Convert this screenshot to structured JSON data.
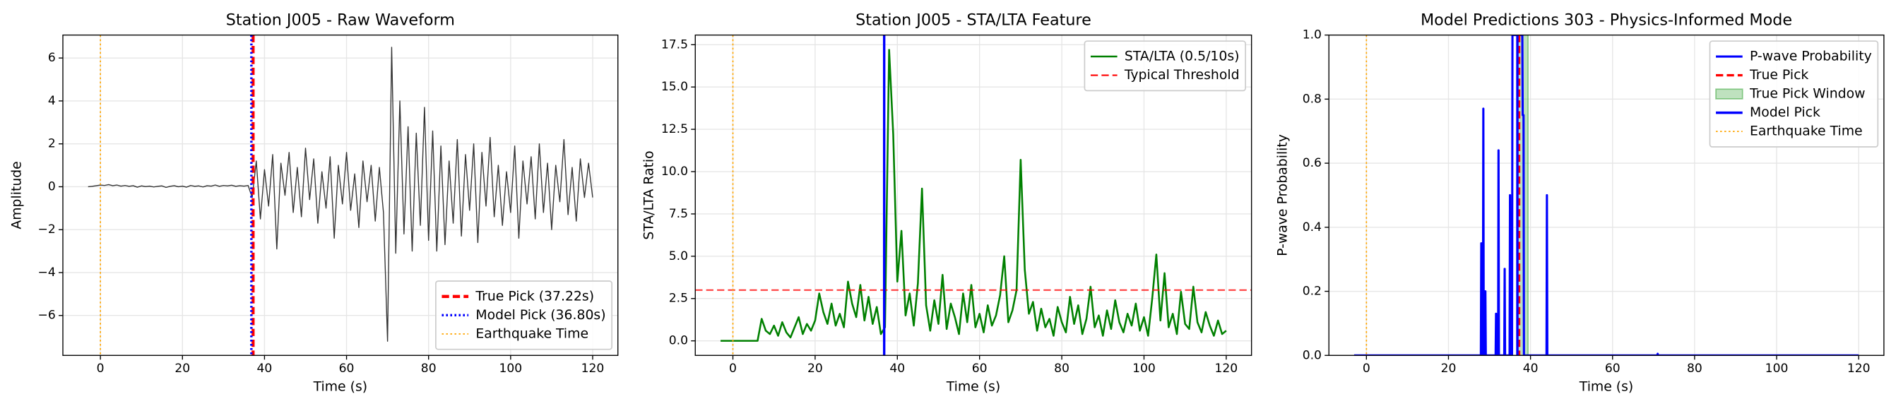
{
  "chart_data": [
    {
      "type": "line",
      "title": "Station J005 - Raw Waveform",
      "xlabel": "Time (s)",
      "ylabel": "Amplitude",
      "xlim": [
        -9.15,
        126.15
      ],
      "ylim": [
        -7.86,
        7.07
      ],
      "xticks": [
        0,
        20,
        40,
        60,
        80,
        100,
        120
      ],
      "yticks": [
        {
          "value": -6,
          "label": "−6"
        },
        {
          "value": -4,
          "label": "−4"
        },
        {
          "value": -2,
          "label": "−2"
        },
        0,
        2,
        4,
        6
      ],
      "grid": true,
      "legend": "lower right",
      "series": [
        {
          "color": "#333333",
          "width": 0.8,
          "x": [
            -3,
            -2,
            -1,
            0,
            1,
            2,
            3,
            4,
            5,
            6,
            7,
            8,
            9,
            10,
            11,
            12,
            13,
            14,
            15,
            16,
            17,
            18,
            19,
            20,
            21,
            22,
            23,
            24,
            25,
            26,
            27,
            28,
            29,
            30,
            31,
            32,
            33,
            34,
            35,
            36,
            37,
            38,
            39,
            40,
            41,
            42,
            43,
            44,
            45,
            46,
            47,
            48,
            49,
            50,
            51,
            52,
            53,
            54,
            55,
            56,
            57,
            58,
            59,
            60,
            61,
            62,
            63,
            64,
            65,
            66,
            67,
            68,
            69,
            70,
            71,
            72,
            73,
            74,
            75,
            76,
            77,
            78,
            79,
            80,
            81,
            82,
            83,
            84,
            85,
            86,
            87,
            88,
            89,
            90,
            91,
            92,
            93,
            94,
            95,
            96,
            97,
            98,
            99,
            100,
            101,
            102,
            103,
            104,
            105,
            106,
            107,
            108,
            109,
            110,
            111,
            112,
            113,
            114,
            115,
            116,
            117,
            118,
            119,
            120
          ],
          "values": [
            0,
            0.02,
            0.05,
            0.08,
            0.06,
            0.1,
            0.05,
            0.08,
            0.03,
            0.06,
            0.02,
            0.05,
            -0.02,
            0.04,
            0.01,
            0.03,
            -0.01,
            0.02,
            0.04,
            -0.03,
            0.02,
            0.05,
            0,
            0.03,
            -0.02,
            0.06,
            0.02,
            0.04,
            -0.01,
            0.05,
            0.03,
            0.08,
            0.02,
            0.06,
            0.04,
            0.07,
            0.02,
            0.05,
            0.03,
            0.06,
            -0.5,
            1.2,
            -1.5,
            0.8,
            -0.9,
            1.5,
            -2.9,
            1.1,
            -0.4,
            1.6,
            -1.2,
            0.9,
            -1.4,
            1.8,
            -0.6,
            1.3,
            -1.7,
            0.7,
            -1.0,
            1.4,
            -2.4,
            1.0,
            -0.8,
            1.6,
            -1.1,
            0.6,
            -1.9,
            1.2,
            -0.7,
            1.0,
            -1.6,
            0.9,
            -1.2,
            -7.2,
            6.5,
            -3.1,
            4.0,
            -2.2,
            2.8,
            -3.0,
            2.5,
            -1.8,
            3.7,
            -2.5,
            2.6,
            -3.0,
            1.9,
            -2.7,
            1.2,
            -1.7,
            2.2,
            -2.3,
            1.5,
            -1.1,
            2.0,
            -2.6,
            1.6,
            -0.9,
            2.3,
            -1.4,
            1.0,
            -1.8,
            0.7,
            -1.2,
            1.9,
            -2.4,
            1.2,
            -0.8,
            1.4,
            -1.5,
            2.0,
            -1.2,
            1.1,
            -2.0,
            1.0,
            -0.7,
            2.2,
            -1.3,
            0.9,
            -1.6,
            1.3,
            -0.5,
            1.1,
            -0.5
          ]
        }
      ],
      "overlays": [
        {
          "kind": "vline",
          "name": "True Pick (37.22s)",
          "x": 37.22,
          "color": "#ff0000",
          "style": "dashed",
          "width": 2.5
        },
        {
          "kind": "vline",
          "name": "Model Pick (36.80s)",
          "x": 36.8,
          "color": "#0000ff",
          "style": "dotted",
          "width": 2
        },
        {
          "kind": "vline",
          "name": "Earthquake Time",
          "x": 0,
          "color": "#ffa500",
          "style": "dotted",
          "width": 1
        }
      ]
    },
    {
      "type": "line",
      "title": "Station J005 - STA/LTA Feature",
      "xlabel": "Time (s)",
      "ylabel": "STA/LTA Ratio",
      "xlim": [
        -9.15,
        126.15
      ],
      "ylim": [
        -0.86,
        18.07
      ],
      "xticks": [
        0,
        20,
        40,
        60,
        80,
        100,
        120
      ],
      "yticks": [
        {
          "value": 0,
          "label": "0.0"
        },
        2.5,
        {
          "value": 5,
          "label": "5.0"
        },
        7.5,
        {
          "value": 10,
          "label": "10.0"
        },
        12.5,
        {
          "value": 15,
          "label": "15.0"
        },
        17.5
      ],
      "grid": true,
      "legend": "upper right",
      "series": [
        {
          "name": "STA/LTA (0.5/10s)",
          "color": "#008000",
          "width": 1.5,
          "x": [
            -3,
            -2,
            -1,
            0,
            1,
            2,
            3,
            4,
            5,
            6,
            7,
            8,
            9,
            10,
            11,
            12,
            13,
            14,
            15,
            16,
            17,
            18,
            19,
            20,
            21,
            22,
            23,
            24,
            25,
            26,
            27,
            28,
            29,
            30,
            31,
            32,
            33,
            34,
            35,
            36,
            37,
            38,
            39,
            40,
            41,
            42,
            43,
            44,
            45,
            46,
            47,
            48,
            49,
            50,
            51,
            52,
            53,
            54,
            55,
            56,
            57,
            58,
            59,
            60,
            61,
            62,
            63,
            64,
            65,
            66,
            67,
            68,
            69,
            70,
            71,
            72,
            73,
            74,
            75,
            76,
            77,
            78,
            79,
            80,
            81,
            82,
            83,
            84,
            85,
            86,
            87,
            88,
            89,
            90,
            91,
            92,
            93,
            94,
            95,
            96,
            97,
            98,
            99,
            100,
            101,
            102,
            103,
            104,
            105,
            106,
            107,
            108,
            109,
            110,
            111,
            112,
            113,
            114,
            115,
            116,
            117,
            118,
            119,
            120
          ],
          "values": [
            0,
            0,
            0,
            0,
            0,
            0,
            0,
            0,
            0,
            0,
            1.3,
            0.6,
            0.4,
            0.9,
            0.3,
            1.1,
            0.5,
            0.2,
            0.8,
            1.4,
            0.4,
            1.0,
            0.6,
            1.2,
            2.8,
            1.7,
            1.0,
            2.2,
            0.9,
            1.6,
            0.8,
            3.5,
            2.2,
            1.4,
            3.3,
            1.2,
            2.6,
            1.0,
            2.0,
            0.4,
            0.8,
            17.2,
            12.2,
            3.5,
            6.5,
            1.5,
            2.8,
            0.9,
            3.4,
            9.0,
            2.1,
            0.6,
            2.4,
            1.0,
            3.9,
            0.7,
            2.2,
            1.4,
            0.4,
            2.8,
            1.1,
            3.3,
            0.8,
            1.6,
            0.5,
            2.1,
            0.9,
            1.5,
            2.7,
            5.0,
            1.1,
            1.8,
            3.0,
            10.7,
            4.2,
            1.6,
            2.3,
            0.6,
            1.9,
            0.8,
            1.3,
            0.3,
            2.0,
            1.1,
            0.5,
            2.6,
            1.0,
            2.1,
            0.4,
            1.3,
            3.2,
            0.8,
            1.5,
            0.3,
            1.8,
            0.7,
            2.4,
            1.1,
            0.5,
            1.6,
            0.9,
            2.2,
            0.6,
            1.4,
            0.3,
            2.5,
            5.1,
            1.2,
            4.0,
            0.8,
            1.6,
            0.4,
            2.9,
            1.0,
            0.7,
            3.2,
            1.1,
            0.5,
            1.7,
            0.9,
            0.3,
            1.2,
            0.4,
            0.6
          ]
        }
      ],
      "overlays": [
        {
          "kind": "hline",
          "name": "Typical Threshold",
          "y": 3,
          "color": "#ff0000",
          "style": "dashed",
          "width": 1.2
        },
        {
          "kind": "vline",
          "x": 36.8,
          "color": "#0000ff",
          "style": "solid",
          "width": 2
        },
        {
          "kind": "vline",
          "x": 0,
          "color": "#ffa500",
          "style": "dotted",
          "width": 1
        }
      ]
    },
    {
      "type": "line",
      "title": "Model Predictions 303 - Physics-Informed Mode",
      "xlabel": "Time (s)",
      "ylabel": "P-wave Probability",
      "xlim": [
        -9.15,
        126.15
      ],
      "ylim": [
        0,
        1
      ],
      "xticks": [
        0,
        20,
        40,
        60,
        80,
        100,
        120
      ],
      "yticks": [
        {
          "value": 0,
          "label": "0.0"
        },
        0.2,
        0.4,
        0.6,
        0.8,
        {
          "value": 1,
          "label": "1.0"
        }
      ],
      "grid": true,
      "legend": "upper right",
      "series": [
        {
          "name": "P-wave Probability",
          "color": "#0000ff",
          "width": 1.8,
          "x": [
            -3,
            27.9,
            28.0,
            28.1,
            28.4,
            28.5,
            28.6,
            28.9,
            29.0,
            29.1,
            31.5,
            31.6,
            31.7,
            32.1,
            32.2,
            32.3,
            33.6,
            33.7,
            33.8,
            34.9,
            35.0,
            35.1,
            35.5,
            35.6,
            36.5,
            38.0,
            38.1,
            38.3,
            38.4,
            43.9,
            44.0,
            44.1,
            70.9,
            71.0,
            71.1,
            120
          ],
          "values": [
            0,
            0,
            0.35,
            0,
            0,
            0.77,
            0,
            0,
            0.2,
            0,
            0,
            0.13,
            0,
            0,
            0.64,
            0,
            0,
            0.27,
            0,
            0,
            0.5,
            0,
            0,
            1,
            1,
            1,
            0.75,
            0.75,
            0,
            0,
            0.5,
            0,
            0,
            0.005,
            0,
            0
          ]
        }
      ],
      "overlays": [
        {
          "kind": "vline",
          "name": "True Pick",
          "x": 37.22,
          "color": "#ff0000",
          "style": "dashed",
          "width": 2
        },
        {
          "kind": "span",
          "name": "True Pick Window",
          "range": [
            36.9,
            39.4
          ],
          "color": "#2ca02c"
        },
        {
          "kind": "vline",
          "name": "Model Pick",
          "x": 36.8,
          "color": "#0000ff",
          "style": "solid",
          "width": 2
        },
        {
          "kind": "vline",
          "name": "Earthquake Time",
          "x": 0,
          "color": "#ffa500",
          "style": "dotted",
          "width": 1
        }
      ]
    }
  ]
}
